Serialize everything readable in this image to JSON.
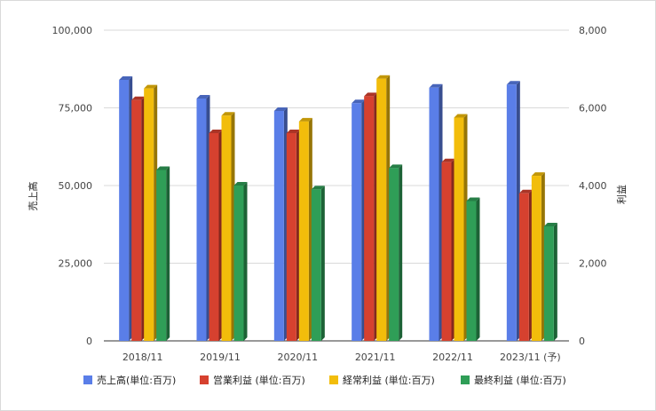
{
  "chart_data": {
    "type": "bar",
    "categories": [
      "2018/11",
      "2019/11",
      "2020/11",
      "2021/11",
      "2022/11",
      "2023/11 (予)"
    ],
    "left_axis": {
      "label": "売上高",
      "ylim": [
        0,
        100000
      ],
      "ticks": [
        "0",
        "25,000",
        "50,000",
        "75,000",
        "100,000"
      ]
    },
    "right_axis": {
      "label": "利益",
      "ylim": [
        0,
        8000
      ],
      "ticks": [
        "0",
        "2,000",
        "4,000",
        "6,000",
        "8,000"
      ]
    },
    "series": [
      {
        "name": "売上高(単位:百万)",
        "axis": "left",
        "color": "#5a7ee8",
        "values": [
          84000,
          78000,
          74000,
          76500,
          81500,
          82500
        ]
      },
      {
        "name": "営業利益 (単位:百万)",
        "axis": "right",
        "color": "#d6412f",
        "values": [
          6200,
          5350,
          5350,
          6300,
          4600,
          3800
        ]
      },
      {
        "name": "経常利益 (単位:百万)",
        "axis": "right",
        "color": "#f2bd0b",
        "values": [
          6500,
          5800,
          5650,
          6750,
          5750,
          4250
        ]
      },
      {
        "name": "最終利益 (単位:百万)",
        "axis": "right",
        "color": "#2f9e57",
        "values": [
          4400,
          4000,
          3900,
          4450,
          3600,
          2950
        ]
      }
    ],
    "grid": true,
    "legend_position": "bottom"
  }
}
